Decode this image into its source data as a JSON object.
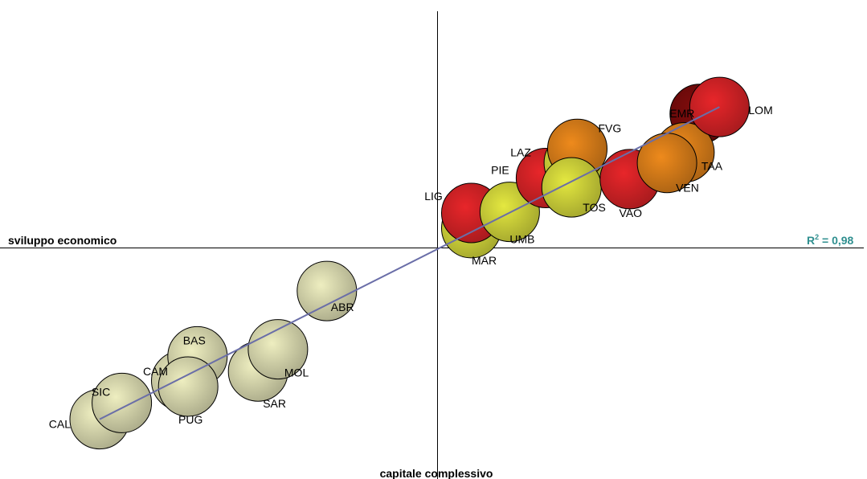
{
  "chart_data": {
    "type": "scatter",
    "title": "",
    "xlabel": "sviluppo economico",
    "ylabel": "capitale complessivo",
    "xlim": [
      -3.7,
      3.7
    ],
    "ylim": [
      -1.85,
      1.85
    ],
    "grid": false,
    "legend": "none",
    "annotation": {
      "r2_label": "R",
      "r2_exponent": "2",
      "r2_value": " = 0,98",
      "color": "#2f8f8f"
    },
    "trendline": {
      "color": "#6a6ea8",
      "from": [
        -2.9,
        -1.47
      ],
      "to": [
        2.42,
        1.21
      ]
    },
    "colors": {
      "pale": "#eeeec0",
      "yellow": "#e4e840",
      "orange": "#ee8a1c",
      "red": "#e8262a",
      "darkred": "#800c0c"
    },
    "points": [
      {
        "label": "CAL",
        "x": -2.9,
        "y": -1.47,
        "color": "pale"
      },
      {
        "label": "SIC",
        "x": -2.71,
        "y": -1.33,
        "color": "pale"
      },
      {
        "label": "CAM",
        "x": -2.2,
        "y": -1.14,
        "color": "pale"
      },
      {
        "label": "BAS",
        "x": -2.06,
        "y": -0.93,
        "color": "pale"
      },
      {
        "label": "PUG",
        "x": -2.14,
        "y": -1.19,
        "color": "pale"
      },
      {
        "label": "SAR",
        "x": -1.54,
        "y": -1.06,
        "color": "pale"
      },
      {
        "label": "MOL",
        "x": -1.37,
        "y": -0.87,
        "color": "pale"
      },
      {
        "label": "ABR",
        "x": -0.95,
        "y": -0.37,
        "color": "pale"
      },
      {
        "label": "MAR",
        "x": 0.29,
        "y": 0.17,
        "color": "yellow"
      },
      {
        "label": "LIG",
        "x": 0.29,
        "y": 0.3,
        "color": "red"
      },
      {
        "label": "UMB",
        "x": 0.62,
        "y": 0.31,
        "color": "yellow"
      },
      {
        "label": "PIE",
        "x": 0.93,
        "y": 0.6,
        "color": "red"
      },
      {
        "label": "LAZ",
        "x": 1.17,
        "y": 0.73,
        "color": "yellow"
      },
      {
        "label": "FVG",
        "x": 1.2,
        "y": 0.85,
        "color": "orange"
      },
      {
        "label": "TOS",
        "x": 1.15,
        "y": 0.52,
        "color": "yellow"
      },
      {
        "label": "VAO",
        "x": 1.65,
        "y": 0.59,
        "color": "red"
      },
      {
        "label": "EMR",
        "x": 2.25,
        "y": 1.15,
        "color": "darkred"
      },
      {
        "label": "TAA",
        "x": 2.12,
        "y": 0.82,
        "color": "orange"
      },
      {
        "label": "VEN",
        "x": 1.97,
        "y": 0.73,
        "color": "orange"
      },
      {
        "label": "LOM",
        "x": 2.42,
        "y": 1.21,
        "color": "red"
      }
    ]
  }
}
